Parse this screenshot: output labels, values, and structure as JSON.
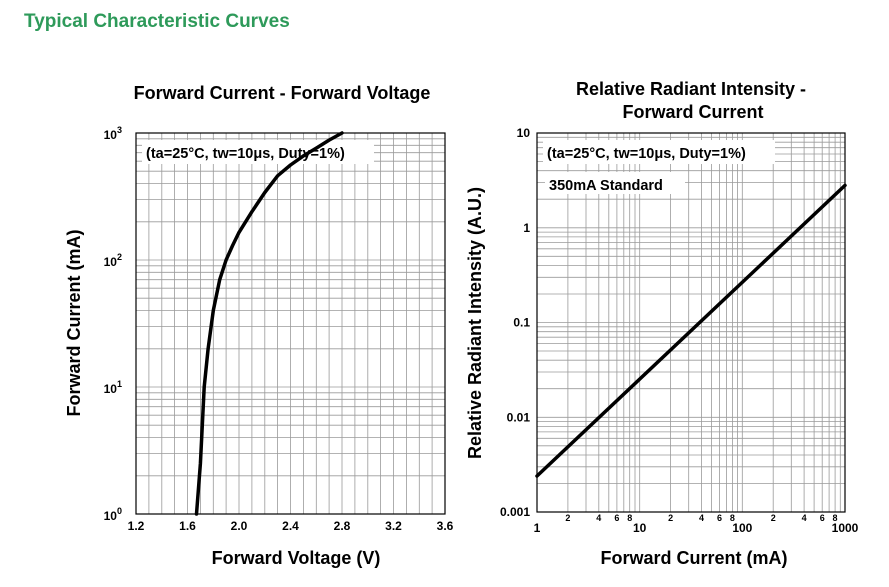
{
  "page": {
    "title": "Typical Characteristic Curves",
    "title_color": "#2e9a5a"
  },
  "chart_data": [
    {
      "type": "line",
      "title": "Forward Current - Forward Voltage",
      "annotation": "(ta=25°C, tw=10μs, Duty=1%)",
      "xlabel": "Forward Voltage (V)",
      "ylabel": "Forward Current (mA)",
      "xlim": [
        1.2,
        3.6
      ],
      "ylim": [
        1,
        1000
      ],
      "yscale": "log",
      "grid": true,
      "x_ticks": [
        "1.2",
        "1.6",
        "2.0",
        "2.4",
        "2.8",
        "3.2",
        "3.6"
      ],
      "y_ticks": [
        {
          "base": "10",
          "exp": "0"
        },
        {
          "base": "10",
          "exp": "1"
        },
        {
          "base": "10",
          "exp": "2"
        },
        {
          "base": "10",
          "exp": "3"
        }
      ],
      "series": [
        {
          "x": [
            1.67,
            1.7,
            1.73,
            1.76,
            1.8,
            1.85,
            1.9,
            1.95,
            2.0,
            2.1,
            2.2,
            2.3,
            2.4,
            2.5,
            2.6,
            2.7,
            2.8
          ],
          "y": [
            1,
            2.5,
            10,
            20,
            40,
            70,
            100,
            130,
            165,
            240,
            340,
            460,
            560,
            660,
            760,
            880,
            1000
          ]
        }
      ]
    },
    {
      "type": "line",
      "title": [
        "Relative Radiant Intensity -",
        "Forward Current"
      ],
      "annotation": "(ta=25°C, tw=10μs, Duty=1%)",
      "note": "350mA Standard",
      "xlabel": "Forward Current (mA)",
      "ylabel": "Relative Radiant Intensity (A.U.)",
      "xlim": [
        1,
        1000
      ],
      "ylim": [
        0.001,
        10
      ],
      "xscale": "log",
      "yscale": "log",
      "grid": true,
      "x_ticks_major": [
        "1",
        "10",
        "100",
        "1000"
      ],
      "x_ticks_minor": [
        "2",
        "4",
        "6",
        "8"
      ],
      "y_ticks": [
        "0.001",
        "0.01",
        "0.1",
        "1",
        "10"
      ],
      "series": [
        {
          "x": [
            1,
            1000
          ],
          "y": [
            0.0024,
            2.8
          ]
        }
      ]
    }
  ]
}
